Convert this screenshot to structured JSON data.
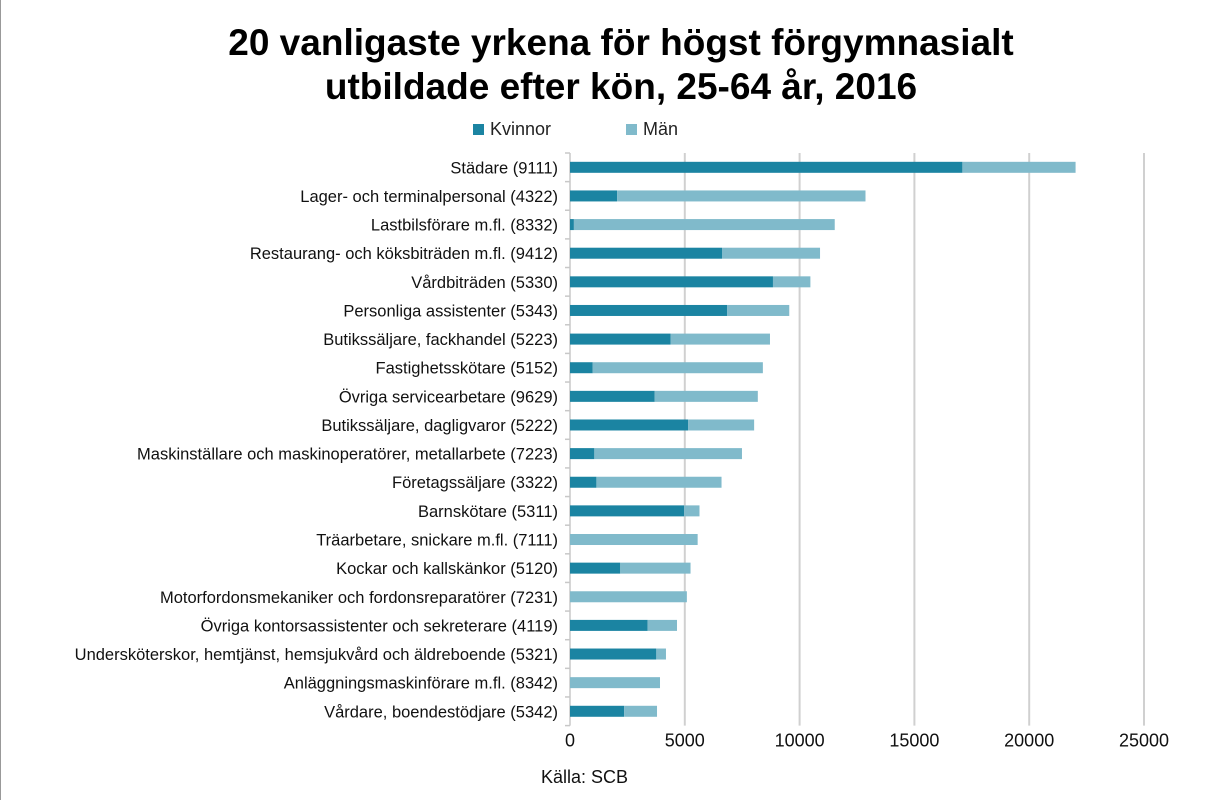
{
  "chart_data": {
    "type": "bar",
    "orientation": "horizontal",
    "stacked": true,
    "title": "20 vanligaste yrkena för högst förgymnasialt utbildade efter kön, 25-64 år, 2016",
    "title_lines": [
      "20 vanligaste yrkena för högst förgymnasialt",
      "utbildade efter kön, 25-64 år, 2016"
    ],
    "xlabel": "",
    "ylabel": "",
    "xlim": [
      0,
      25000
    ],
    "xticks": [
      "0",
      "5000",
      "10000",
      "15000",
      "20000",
      "25000"
    ],
    "grid": true,
    "legend_position": "top",
    "source": "Källa: SCB",
    "categories": [
      "Städare (9111)",
      "Lager- och terminalpersonal (4322)",
      "Lastbilsförare m.fl. (8332)",
      "Restaurang- och köksbiträden m.fl. (9412)",
      "Vårdbiträden (5330)",
      "Personliga assistenter (5343)",
      "Butikssäljare, fackhandel (5223)",
      "Fastighetsskötare (5152)",
      "Övriga servicearbetare (9629)",
      "Butikssäljare, dagligvaror (5222)",
      "Maskinställare och maskinoperatörer, metallarbete (7223)",
      "Företagssäljare (3322)",
      "Barnskötare (5311)",
      "Träarbetare, snickare m.fl. (7111)",
      "Kockar och kallskänkor (5120)",
      "Motorfordonsmekaniker och fordonsreparatörer (7231)",
      "Övriga kontorsassistenter och sekreterare (4119)",
      "Undersköterskor, hemtjänst, hemsjukvård och äldreboende (5321)",
      "Anläggningsmaskinförare m.fl. (8342)",
      "Vårdare, boendestödjare (5342)"
    ],
    "series": [
      {
        "name": "Kvinnor",
        "color": "#1b84a2",
        "values": [
          17090,
          2050,
          170,
          6620,
          8840,
          6840,
          4380,
          990,
          3690,
          5150,
          1060,
          1150,
          4970,
          0,
          2190,
          0,
          3380,
          3760,
          0,
          2360
        ]
      },
      {
        "name": "Män",
        "color": "#80bacb",
        "values": [
          4930,
          10820,
          11360,
          4270,
          1630,
          2710,
          4330,
          7410,
          4490,
          2870,
          6430,
          5450,
          670,
          5560,
          3060,
          5090,
          1280,
          420,
          3920,
          1430
        ]
      }
    ]
  }
}
